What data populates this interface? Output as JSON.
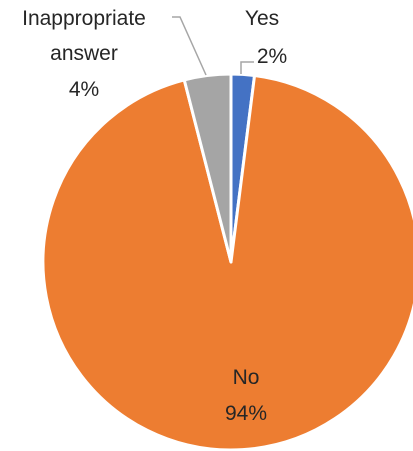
{
  "chart_data": {
    "type": "pie",
    "slices": [
      {
        "label": "Yes",
        "value": 2,
        "pct_label": "2%",
        "color": "#4472C4"
      },
      {
        "label": "No",
        "value": 94,
        "pct_label": "94%",
        "color": "#ED7D31"
      },
      {
        "label": "Inappropriate answer",
        "value": 4,
        "pct_label": "4%",
        "color": "#A5A5A5"
      }
    ],
    "start_angle_deg": 0,
    "direction": "clockwise",
    "slice_border_color": "#ffffff",
    "label_text": {
      "yes_name": "Yes",
      "yes_pct": "2%",
      "no_name": "No",
      "no_pct": "94%",
      "inappropriate_line1": "Inappropriate",
      "inappropriate_line2": "answer",
      "inappropriate_pct": "4%"
    },
    "leader_line_color": "#A6A6A6"
  }
}
